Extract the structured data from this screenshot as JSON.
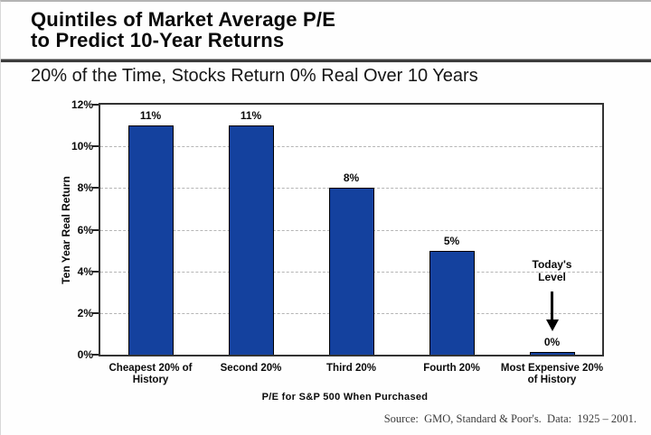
{
  "header": {
    "title": "Quintiles of Market Average P/E\nto Predict 10-Year Returns",
    "subtitle": "20% of the Time, Stocks Return 0% Real Over 10 Years"
  },
  "footer": {
    "source": "Source:  GMO, Standard & Poor's.  Data:  1925 – 2001."
  },
  "chart_data": {
    "type": "bar",
    "title": "Quintiles of Market Average P/E to Predict 10-Year Returns",
    "subtitle": "20% of the Time, Stocks Return 0% Real Over 10 Years",
    "categories": [
      "Cheapest 20% of\nHistory",
      "Second 20%",
      "Third 20%",
      "Fourth 20%",
      "Most Expensive 20%\nof History"
    ],
    "values": [
      11,
      11,
      8,
      5,
      0.15
    ],
    "bar_labels": [
      "11%",
      "11%",
      "8%",
      "5%",
      "0%"
    ],
    "xlabel": "P/E for S&P 500 When Purchased",
    "ylabel": "Ten Year Real Return",
    "ylim": [
      0,
      12
    ],
    "yticks": [
      0,
      2,
      4,
      6,
      8,
      10,
      12
    ],
    "ytick_labels": [
      "0%",
      "2%",
      "4%",
      "6%",
      "8%",
      "10%",
      "12%"
    ],
    "grid": "horizontal-dashed",
    "legend": "none",
    "annotation": {
      "text": "Today's\nLevel",
      "target": "Most Expensive 20% of History",
      "target_index": 4
    },
    "colors": {
      "bar_fill": "#14419E",
      "bar_border": "#000000",
      "gridline": "#b5b5b5",
      "frame": "#333333",
      "text": "#0a0a0a"
    }
  }
}
